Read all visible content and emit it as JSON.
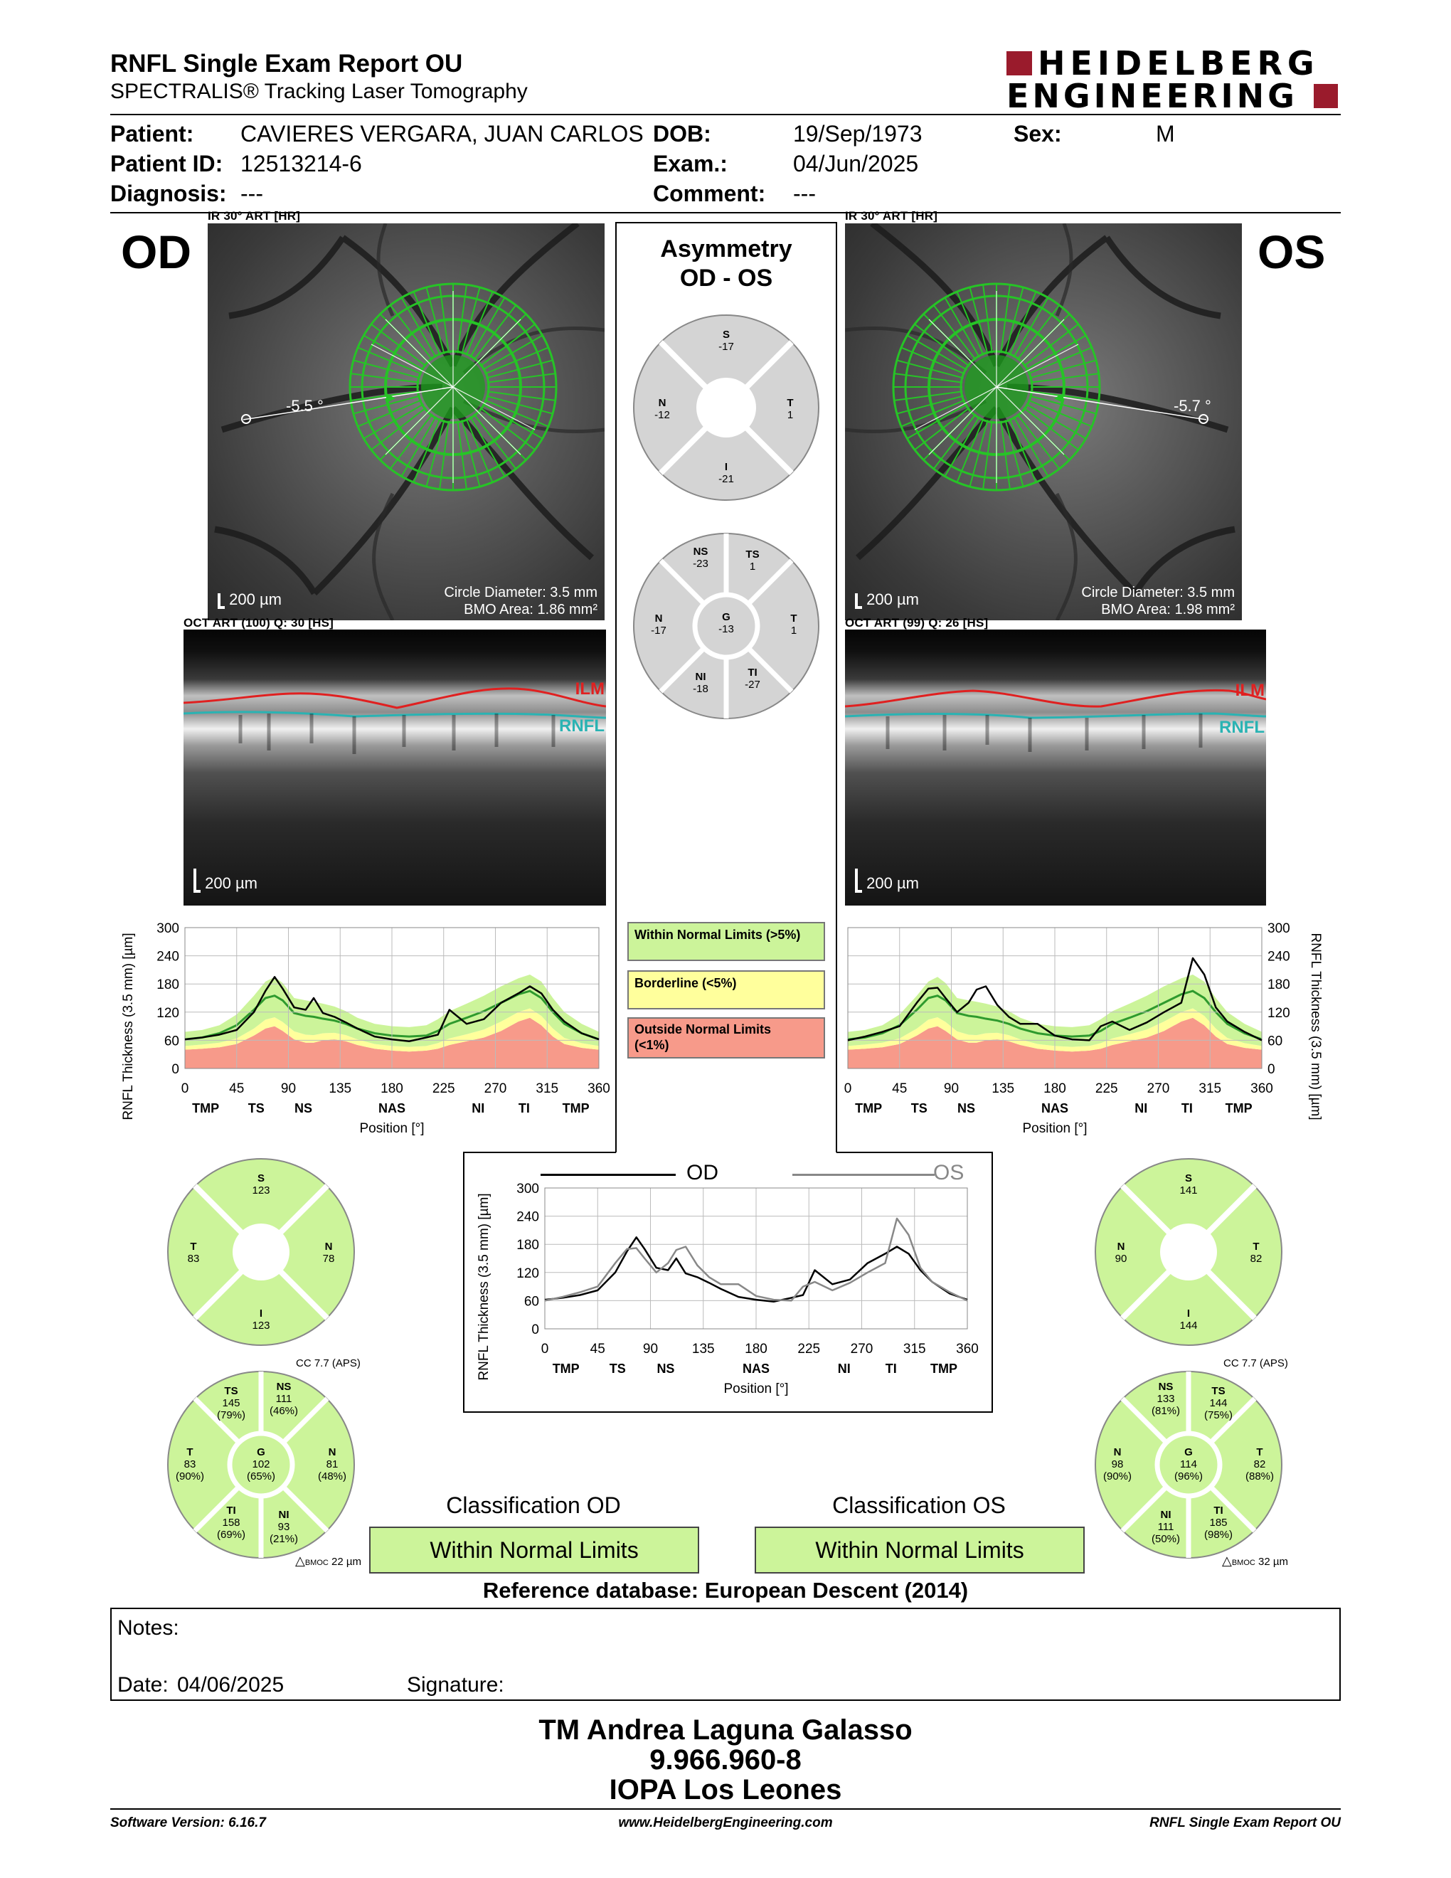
{
  "report": {
    "title": "RNFL Single Exam Report OU",
    "subtitle": "SPECTRALIS® Tracking Laser Tomography",
    "logo_line1": "HEIDELBERG",
    "logo_line2": "ENGINEERING"
  },
  "patient": {
    "patient_label": "Patient:",
    "patient_value": "CAVIERES VERGARA, JUAN CARLOS",
    "dob_label": "DOB:",
    "dob_value": "19/Sep/1973",
    "sex_label": "Sex:",
    "sex_value": "M",
    "id_label": "Patient ID:",
    "id_value": "12513214-6",
    "exam_label": "Exam.:",
    "exam_value": "04/Jun/2025",
    "diagnosis_label": "Diagnosis:",
    "diagnosis_value": "---",
    "comment_label": "Comment:",
    "comment_value": "---"
  },
  "od": {
    "eye_label": "OD",
    "ir_caption": "IR 30° ART [HR]",
    "angle": "-5.5 °",
    "scale": "200 µm",
    "circle_diameter": "Circle Diameter: 3.5 mm",
    "bmo_area": "BMO Area: 1.86 mm²",
    "oct_caption": "OCT ART (100) Q: 30 [HS]",
    "ilm": "ILM",
    "rnfl": "RNFL",
    "oct_scale": "200 µm",
    "quadrants": {
      "S": "123",
      "T": "83",
      "N": "78",
      "I": "123"
    },
    "sectors": {
      "TS": {
        "value": "145",
        "pct": "(79%)"
      },
      "NS": {
        "value": "111",
        "pct": "(46%)"
      },
      "T": {
        "value": "83",
        "pct": "(90%)"
      },
      "G": {
        "value": "102",
        "pct": "(65%)"
      },
      "N": {
        "value": "81",
        "pct": "(48%)"
      },
      "TI": {
        "value": "158",
        "pct": "(69%)"
      },
      "NI": {
        "value": "93",
        "pct": "(21%)"
      }
    },
    "cc": "CC 7.7 (APS)",
    "delta": "22 µm",
    "classification_title": "Classification OD",
    "classification": "Within Normal Limits"
  },
  "os": {
    "eye_label": "OS",
    "ir_caption": "IR 30° ART [HR]",
    "angle": "-5.7 °",
    "scale": "200 µm",
    "circle_diameter": "Circle Diameter: 3.5 mm",
    "bmo_area": "BMO Area: 1.98 mm²",
    "oct_caption": "OCT ART (99) Q: 26 [HS]",
    "ilm": "ILM",
    "rnfl": "RNFL",
    "oct_scale": "200 µm",
    "quadrants": {
      "S": "141",
      "N": "90",
      "T": "82",
      "I": "144"
    },
    "sectors": {
      "NS": {
        "value": "133",
        "pct": "(81%)"
      },
      "TS": {
        "value": "144",
        "pct": "(75%)"
      },
      "N": {
        "value": "98",
        "pct": "(90%)"
      },
      "G": {
        "value": "114",
        "pct": "(96%)"
      },
      "T": {
        "value": "82",
        "pct": "(88%)"
      },
      "NI": {
        "value": "111",
        "pct": "(50%)"
      },
      "TI": {
        "value": "185",
        "pct": "(98%)"
      }
    },
    "cc": "CC 7.7 (APS)",
    "delta": "32 µm",
    "classification_title": "Classification OS",
    "classification": "Within Normal Limits"
  },
  "asymmetry": {
    "title1": "Asymmetry",
    "title2": "OD - OS",
    "quadrants": {
      "S": "-17",
      "N": "-12",
      "T": "1",
      "I": "-21"
    },
    "sectors": {
      "NS": "-23",
      "TS": "1",
      "N": "-17",
      "G": "-13",
      "T": "1",
      "NI": "-18",
      "TI": "-27"
    }
  },
  "legend": {
    "within": "Within Normal Limits (>5%)",
    "borderline": "Borderline (<5%)",
    "outside1": "Outside Normal Limits",
    "outside2": "(<1%)"
  },
  "colors": {
    "within": "#ccf49a",
    "borderline": "#ffff9c",
    "outside": "#f79a8a",
    "green_line": "#2e9a2e",
    "sector_gray": "#d4d4d4"
  },
  "chart_data": [
    {
      "type": "line",
      "id": "od_profile",
      "ylabel": "RNFL Thickness (3.5 mm) [µm]",
      "xlabel": "Position [°]",
      "ylim": [
        0,
        300
      ],
      "xlim": [
        0,
        360
      ],
      "yticks": [
        0,
        60,
        120,
        180,
        240,
        300
      ],
      "xticks": [
        0,
        45,
        90,
        135,
        180,
        225,
        270,
        315,
        360
      ],
      "region_labels": [
        {
          "x": 18,
          "label": "TMP"
        },
        {
          "x": 62,
          "label": "TS"
        },
        {
          "x": 103,
          "label": "NS"
        },
        {
          "x": 180,
          "label": "NAS"
        },
        {
          "x": 255,
          "label": "NI"
        },
        {
          "x": 295,
          "label": "TI"
        },
        {
          "x": 340,
          "label": "TMP"
        }
      ],
      "x": [
        0,
        15,
        30,
        45,
        60,
        70,
        78,
        85,
        95,
        105,
        112,
        120,
        130,
        140,
        150,
        165,
        180,
        195,
        210,
        220,
        230,
        245,
        260,
        275,
        290,
        300,
        310,
        320,
        330,
        345,
        360
      ],
      "series": [
        {
          "values": [
            62,
            66,
            72,
            82,
            120,
            165,
            195,
            170,
            130,
            125,
            150,
            118,
            110,
            98,
            85,
            68,
            62,
            58,
            66,
            72,
            125,
            95,
            105,
            140,
            160,
            175,
            160,
            125,
            100,
            75,
            62
          ]
        }
      ],
      "normal": {
        "mean": [
          62,
          66,
          75,
          92,
          125,
          150,
          155,
          145,
          118,
          112,
          110,
          106,
          102,
          95,
          85,
          75,
          70,
          68,
          70,
          80,
          95,
          108,
          122,
          140,
          158,
          165,
          150,
          120,
          95,
          75,
          62
        ],
        "p99": [
          40,
          42,
          45,
          52,
          70,
          85,
          90,
          80,
          62,
          55,
          55,
          60,
          62,
          58,
          50,
          42,
          38,
          36,
          38,
          42,
          50,
          58,
          66,
          80,
          100,
          108,
          92,
          68,
          52,
          44,
          40
        ],
        "p95": [
          48,
          51,
          55,
          64,
          85,
          104,
          109,
          99,
          79,
          72,
          71,
          75,
          76,
          71,
          62,
          52,
          48,
          46,
          48,
          54,
          64,
          73,
          83,
          100,
          120,
          128,
          112,
          85,
          65,
          54,
          48
        ],
        "upper": [
          78,
          82,
          92,
          115,
          155,
          185,
          195,
          182,
          150,
          145,
          142,
          138,
          132,
          122,
          108,
          95,
          90,
          88,
          92,
          105,
          122,
          138,
          155,
          175,
          192,
          200,
          185,
          150,
          120,
          95,
          78
        ]
      }
    },
    {
      "type": "line",
      "id": "os_profile",
      "ylabel": "RNFL Thickness (3.5 mm) [µm]",
      "xlabel": "Position [°]",
      "ylim": [
        0,
        300
      ],
      "xlim": [
        0,
        360
      ],
      "yticks": [
        0,
        60,
        120,
        180,
        240,
        300
      ],
      "xticks": [
        0,
        45,
        90,
        135,
        180,
        225,
        270,
        315,
        360
      ],
      "region_labels": [
        {
          "x": 18,
          "label": "TMP"
        },
        {
          "x": 62,
          "label": "TS"
        },
        {
          "x": 103,
          "label": "NS"
        },
        {
          "x": 180,
          "label": "NAS"
        },
        {
          "x": 255,
          "label": "NI"
        },
        {
          "x": 295,
          "label": "TI"
        },
        {
          "x": 340,
          "label": "TMP"
        }
      ],
      "x": [
        0,
        15,
        30,
        45,
        60,
        70,
        78,
        85,
        95,
        105,
        112,
        120,
        130,
        140,
        150,
        165,
        180,
        195,
        210,
        220,
        230,
        245,
        260,
        275,
        290,
        300,
        310,
        320,
        330,
        345,
        360
      ],
      "series": [
        {
          "values": [
            60,
            68,
            78,
            90,
            140,
            170,
            172,
            150,
            120,
            140,
            168,
            175,
            135,
            110,
            95,
            95,
            70,
            62,
            60,
            90,
            100,
            82,
            98,
            120,
            140,
            235,
            200,
            130,
            100,
            78,
            60
          ]
        }
      ],
      "normal": {
        "mean": [
          62,
          66,
          75,
          92,
          125,
          150,
          155,
          145,
          118,
          112,
          110,
          106,
          102,
          95,
          85,
          75,
          70,
          68,
          70,
          80,
          95,
          108,
          122,
          140,
          158,
          165,
          150,
          120,
          95,
          75,
          62
        ],
        "p99": [
          40,
          42,
          45,
          52,
          70,
          85,
          90,
          80,
          62,
          55,
          55,
          60,
          62,
          58,
          50,
          42,
          38,
          36,
          38,
          42,
          50,
          58,
          66,
          80,
          100,
          108,
          92,
          68,
          52,
          44,
          40
        ],
        "p95": [
          48,
          51,
          55,
          64,
          85,
          104,
          109,
          99,
          79,
          72,
          71,
          75,
          76,
          71,
          62,
          52,
          48,
          46,
          48,
          54,
          64,
          73,
          83,
          100,
          120,
          128,
          112,
          85,
          65,
          54,
          48
        ],
        "upper": [
          78,
          82,
          92,
          115,
          155,
          185,
          195,
          182,
          150,
          145,
          142,
          138,
          132,
          122,
          108,
          95,
          90,
          88,
          92,
          105,
          122,
          138,
          155,
          175,
          192,
          200,
          185,
          150,
          120,
          95,
          78
        ]
      }
    },
    {
      "type": "line",
      "id": "ou_comparison",
      "ylabel": "RNFL Thickness (3.5 mm) [µm]",
      "xlabel": "Position [°]",
      "ylim": [
        0,
        300
      ],
      "xlim": [
        0,
        360
      ],
      "yticks": [
        0,
        60,
        120,
        180,
        240,
        300
      ],
      "xticks": [
        0,
        45,
        90,
        135,
        180,
        225,
        270,
        315,
        360
      ],
      "region_labels": [
        {
          "x": 18,
          "label": "TMP"
        },
        {
          "x": 62,
          "label": "TS"
        },
        {
          "x": 103,
          "label": "NS"
        },
        {
          "x": 180,
          "label": "NAS"
        },
        {
          "x": 255,
          "label": "NI"
        },
        {
          "x": 295,
          "label": "TI"
        },
        {
          "x": 340,
          "label": "TMP"
        }
      ],
      "x": [
        0,
        15,
        30,
        45,
        60,
        70,
        78,
        85,
        95,
        105,
        112,
        120,
        130,
        140,
        150,
        165,
        180,
        195,
        210,
        220,
        230,
        245,
        260,
        275,
        290,
        300,
        310,
        320,
        330,
        345,
        360
      ],
      "series": [
        {
          "name": "OD",
          "color": "#000000",
          "values": [
            62,
            66,
            72,
            82,
            120,
            165,
            195,
            170,
            130,
            125,
            150,
            118,
            110,
            98,
            85,
            68,
            62,
            58,
            66,
            72,
            125,
            95,
            105,
            140,
            160,
            175,
            160,
            125,
            100,
            75,
            62
          ]
        },
        {
          "name": "OS",
          "color": "#888888",
          "values": [
            60,
            68,
            78,
            90,
            140,
            170,
            172,
            150,
            120,
            140,
            168,
            175,
            135,
            110,
            95,
            95,
            70,
            62,
            60,
            90,
            100,
            82,
            98,
            120,
            140,
            235,
            200,
            130,
            100,
            78,
            60
          ]
        }
      ]
    }
  ],
  "reference": "Reference database: European Descent (2014)",
  "notes": {
    "notes_label": "Notes:",
    "date_label": "Date:",
    "date_value": "04/06/2025",
    "signature_label": "Signature:"
  },
  "signer": {
    "line1": "TM Andrea Laguna Galasso",
    "line2": "9.966.960-8",
    "line3": "IOPA Los Leones"
  },
  "footer": {
    "software": "Software Version: 6.16.7",
    "website": "www.HeidelbergEngineering.com",
    "report_name": "RNFL Single Exam Report OU"
  }
}
